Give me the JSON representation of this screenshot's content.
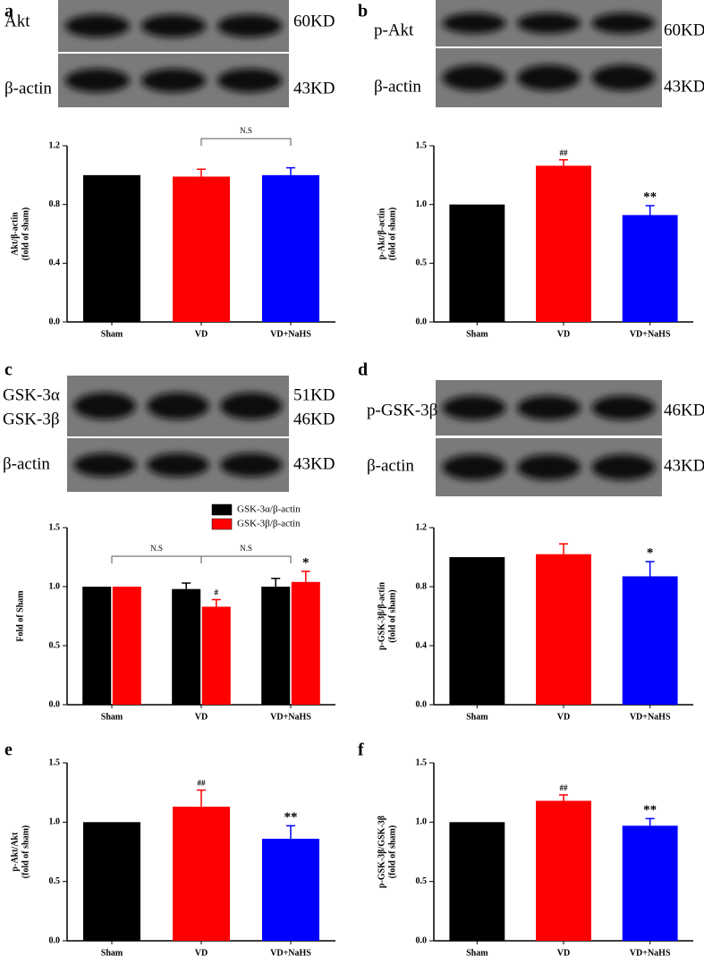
{
  "chart_data": [
    {
      "panel": "a",
      "type": "bar",
      "blot": {
        "rows": [
          {
            "label": "Akt",
            "size": "60KD"
          },
          {
            "label": "β-actin",
            "size": "43KD"
          }
        ]
      },
      "y_label": [
        "Akt/β-actin",
        "(fold of sham)"
      ],
      "categories": [
        "Sham",
        "VD",
        "VD+NaHS"
      ],
      "series": [
        {
          "colors": [
            "#000000",
            "#ff0000",
            "#0000ff"
          ],
          "values": [
            1.0,
            0.99,
            1.0
          ],
          "errors": [
            null,
            0.05,
            0.05
          ],
          "significance": [
            null,
            null,
            null
          ]
        }
      ],
      "ylim": [
        0,
        1.2
      ],
      "yticks": [
        {
          "value": 0,
          "label": "0.0"
        },
        0.4,
        0.8,
        1.2
      ],
      "brackets": [
        {
          "text": "N.S",
          "categories": [
            "VD",
            "VD+NaHS"
          ]
        }
      ]
    },
    {
      "panel": "b",
      "type": "bar",
      "blot": {
        "rows": [
          {
            "label": "p-Akt",
            "size": "60KD"
          },
          {
            "label": "β-actin",
            "size": "43KD"
          }
        ]
      },
      "y_label": [
        "p-Akt/β-actin",
        "(fold of sham)"
      ],
      "categories": [
        "Sham",
        "VD",
        "VD+NaHS"
      ],
      "series": [
        {
          "colors": [
            "#000000",
            "#ff0000",
            "#0000ff"
          ],
          "values": [
            1.0,
            1.33,
            0.91
          ],
          "errors": [
            null,
            0.05,
            0.08
          ],
          "significance": [
            null,
            "##",
            "**"
          ]
        }
      ],
      "ylim": [
        0,
        1.5
      ],
      "yticks": [
        {
          "value": 0,
          "label": "0.0"
        },
        0.5,
        {
          "value": 1,
          "label": "1.0"
        },
        1.5
      ]
    },
    {
      "panel": "c",
      "type": "grouped-bar",
      "blot": {
        "rows": [
          {
            "label": "GSK-3α",
            "size": "51KD"
          },
          {
            "label": "GSK-3β",
            "size": "46KD"
          },
          {
            "label": "β-actin",
            "size": "43KD"
          }
        ]
      },
      "y_label": [
        "Fold of Sham"
      ],
      "categories": [
        "Sham",
        "VD",
        "VD+NaHS"
      ],
      "series": [
        {
          "name": "GSK-3α/β-actin",
          "color": "#000000",
          "values": [
            1.0,
            0.98,
            1.0
          ],
          "errors": [
            null,
            0.05,
            0.07
          ],
          "significance": [
            null,
            null,
            null
          ]
        },
        {
          "name": "GSK-3β/β-actin",
          "color": "#ff0000",
          "values": [
            1.0,
            0.83,
            1.04
          ],
          "errors": [
            null,
            0.06,
            0.09
          ],
          "significance": [
            null,
            "#",
            "*"
          ]
        }
      ],
      "legend": "upper right",
      "ylim": [
        0,
        1.5
      ],
      "yticks": [
        {
          "value": 0,
          "label": "0.0"
        },
        0.5,
        {
          "value": 1,
          "label": "1.0"
        },
        1.5
      ],
      "brackets": [
        {
          "text": "N.S",
          "categories": [
            "Sham",
            "VD"
          ]
        },
        {
          "text": "N.S",
          "categories": [
            "VD",
            "VD+NaHS"
          ]
        }
      ]
    },
    {
      "panel": "d",
      "type": "bar",
      "blot": {
        "rows": [
          {
            "label": "p-GSK-3β",
            "size": "46KD"
          },
          {
            "label": "β-actin",
            "size": "43KD"
          }
        ]
      },
      "y_label": [
        "p-GSK-3β/β-actin",
        "(fold of sham)"
      ],
      "categories": [
        "Sham",
        "VD",
        "VD+NaHS"
      ],
      "series": [
        {
          "colors": [
            "#000000",
            "#ff0000",
            "#0000ff"
          ],
          "values": [
            1.0,
            1.02,
            0.87
          ],
          "errors": [
            null,
            0.07,
            0.1
          ],
          "significance": [
            null,
            null,
            "*"
          ]
        }
      ],
      "ylim": [
        0,
        1.2
      ],
      "yticks": [
        {
          "value": 0,
          "label": "0.0"
        },
        0.4,
        0.8,
        1.2
      ]
    },
    {
      "panel": "e",
      "type": "bar",
      "y_label": [
        "p-Akt/Akt",
        "(fold of sham)"
      ],
      "categories": [
        "Sham",
        "VD",
        "VD+NaHS"
      ],
      "series": [
        {
          "colors": [
            "#000000",
            "#ff0000",
            "#0000ff"
          ],
          "values": [
            1.0,
            1.13,
            0.86
          ],
          "errors": [
            null,
            0.14,
            0.11
          ],
          "significance": [
            null,
            "##",
            "**"
          ]
        }
      ],
      "ylim": [
        0,
        1.5
      ],
      "yticks": [
        {
          "value": 0,
          "label": "0.0"
        },
        0.5,
        {
          "value": 1,
          "label": "1.0"
        },
        1.5
      ]
    },
    {
      "panel": "f",
      "type": "bar",
      "y_label": [
        "p-GSK-3β/GSK-3β",
        "(fold of sham)"
      ],
      "categories": [
        "Sham",
        "VD",
        "VD+NaHS"
      ],
      "series": [
        {
          "colors": [
            "#000000",
            "#ff0000",
            "#0000ff"
          ],
          "values": [
            1.0,
            1.18,
            0.97
          ],
          "errors": [
            null,
            0.05,
            0.06
          ],
          "significance": [
            null,
            "##",
            "**"
          ]
        }
      ],
      "ylim": [
        0,
        1.5
      ],
      "yticks": [
        {
          "value": 0,
          "label": "0.0"
        },
        0.5,
        {
          "value": 1,
          "label": "1.0"
        },
        1.5
      ]
    }
  ]
}
